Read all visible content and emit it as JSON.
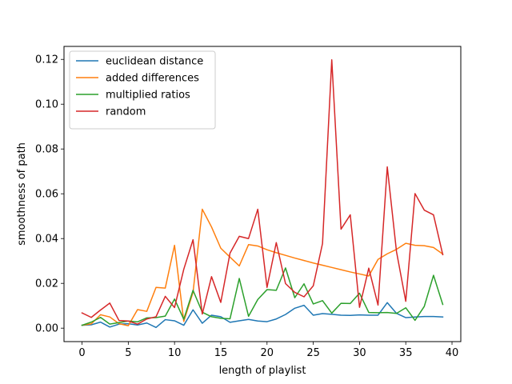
{
  "chart_data": {
    "type": "line",
    "title": "",
    "xlabel": "length of playlist",
    "ylabel": "smoothness of path",
    "xlim": [
      -1.95,
      40.95
    ],
    "ylim": [
      -0.006,
      0.1258
    ],
    "xticks": [
      0,
      5,
      10,
      15,
      20,
      25,
      30,
      35,
      40
    ],
    "yticks": [
      0.0,
      0.02,
      0.04,
      0.06,
      0.08,
      0.1,
      0.12
    ],
    "ytick_labels": [
      "0.00",
      "0.02",
      "0.04",
      "0.06",
      "0.08",
      "0.10",
      "0.12"
    ],
    "grid": false,
    "legend_position": "top-left",
    "x": [
      0,
      1,
      2,
      3,
      4,
      5,
      6,
      7,
      8,
      9,
      10,
      11,
      12,
      13,
      14,
      15,
      16,
      17,
      18,
      19,
      20,
      21,
      22,
      23,
      24,
      25,
      26,
      27,
      28,
      29,
      30,
      31,
      32,
      33,
      34,
      35,
      36,
      37,
      38,
      39
    ],
    "series": [
      {
        "name": "euclidean distance",
        "color": "#1f77b4",
        "values": [
          0.0013,
          0.0015,
          0.0027,
          0.0005,
          0.0018,
          0.002,
          0.0014,
          0.0023,
          0.0003,
          0.0038,
          0.0033,
          0.0013,
          0.0082,
          0.0022,
          0.0058,
          0.0051,
          0.0026,
          0.0033,
          0.0039,
          0.0032,
          0.0029,
          0.0041,
          0.0061,
          0.0089,
          0.0102,
          0.0058,
          0.0065,
          0.0062,
          0.0058,
          0.0057,
          0.0059,
          0.0058,
          0.0058,
          0.0114,
          0.0066,
          0.0047,
          0.005,
          0.0052,
          0.0052,
          0.005
        ]
      },
      {
        "name": "added differences",
        "color": "#ff7f0e",
        "values": [
          0.0013,
          0.0019,
          0.006,
          0.005,
          0.002,
          0.0011,
          0.0083,
          0.0075,
          0.0182,
          0.0179,
          0.037,
          0.003,
          0.016,
          0.0531,
          0.0452,
          0.0357,
          0.0317,
          0.0278,
          0.0373,
          0.0367,
          0.035,
          0.0337,
          0.0325,
          0.0313,
          0.0302,
          0.0291,
          0.0281,
          0.0271,
          0.0261,
          0.0251,
          0.0242,
          0.0233,
          0.0307,
          0.0332,
          0.0352,
          0.0379,
          0.037,
          0.0368,
          0.036,
          0.0331
        ]
      },
      {
        "name": "multiplied ratios",
        "color": "#2ca02c",
        "values": [
          0.0013,
          0.0027,
          0.0048,
          0.0018,
          0.0025,
          0.0032,
          0.0028,
          0.0046,
          0.0047,
          0.0054,
          0.013,
          0.004,
          0.0169,
          0.0071,
          0.0051,
          0.0044,
          0.0042,
          0.0222,
          0.0053,
          0.0128,
          0.0172,
          0.0169,
          0.0269,
          0.0136,
          0.0198,
          0.0108,
          0.0123,
          0.0067,
          0.0111,
          0.011,
          0.0156,
          0.007,
          0.0069,
          0.007,
          0.0066,
          0.0091,
          0.0035,
          0.0097,
          0.0236,
          0.0106
        ]
      },
      {
        "name": "random",
        "color": "#d62728",
        "values": [
          0.0068,
          0.0048,
          0.0081,
          0.0112,
          0.0034,
          0.0032,
          0.0018,
          0.0041,
          0.0051,
          0.0142,
          0.0092,
          0.0263,
          0.0395,
          0.0063,
          0.023,
          0.0115,
          0.0335,
          0.041,
          0.04,
          0.0531,
          0.0182,
          0.0382,
          0.0199,
          0.016,
          0.014,
          0.0189,
          0.0378,
          0.1198,
          0.0442,
          0.0506,
          0.0093,
          0.0268,
          0.0103,
          0.072,
          0.0341,
          0.012,
          0.0601,
          0.0527,
          0.0506,
          0.0328
        ]
      }
    ]
  }
}
